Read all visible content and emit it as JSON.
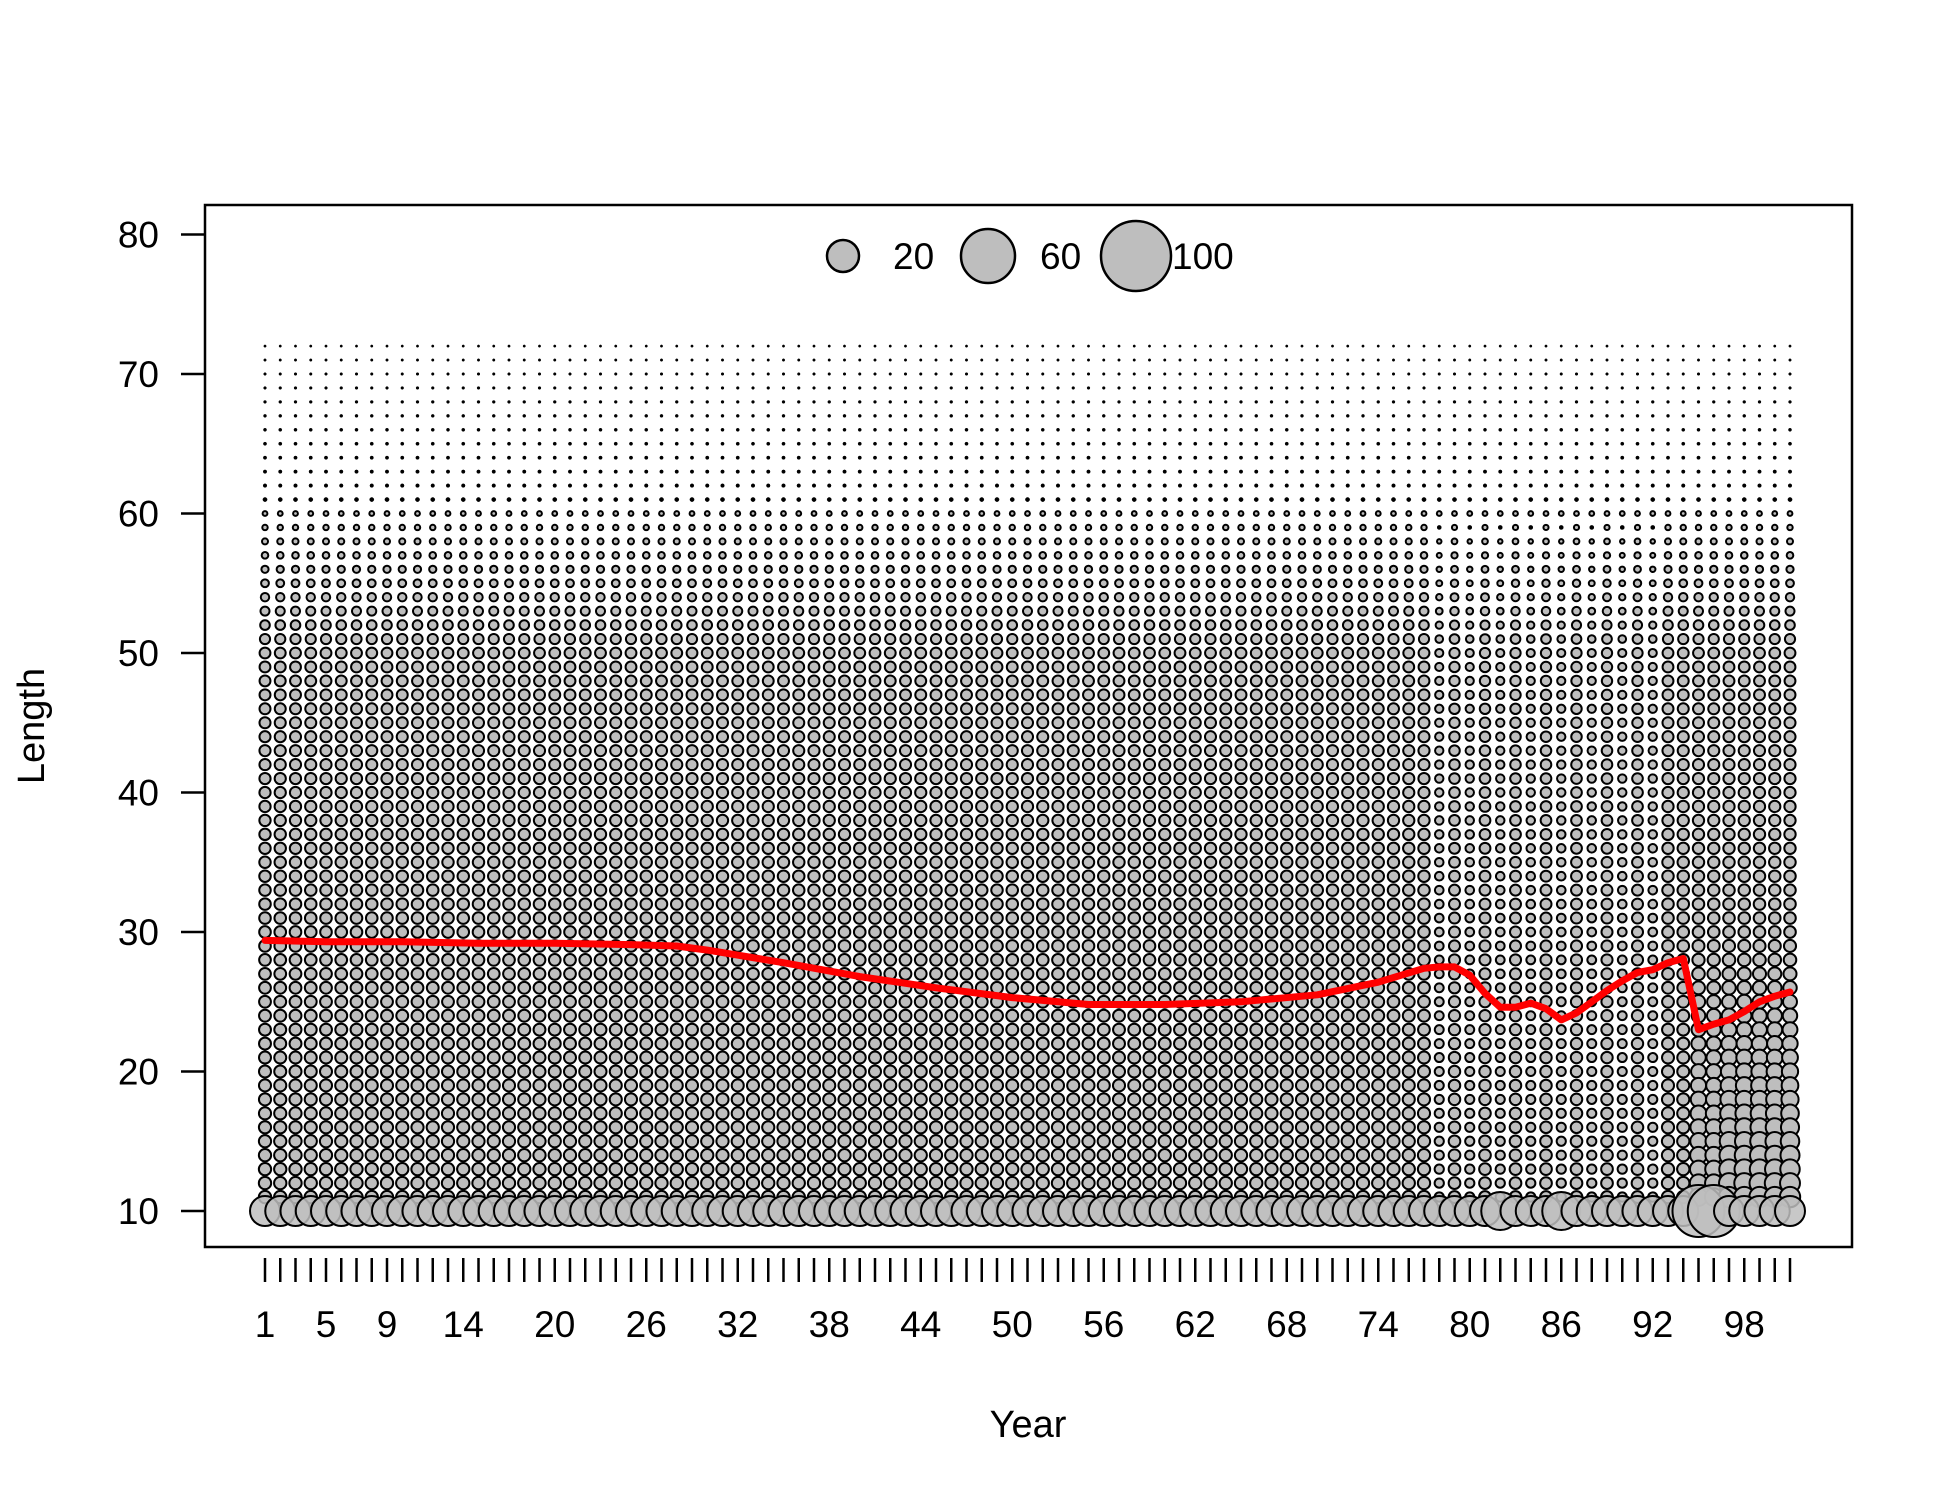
{
  "chart_data": {
    "type": "scatter",
    "subtype": "bubble",
    "title": "",
    "xlabel": "Year",
    "ylabel": "Length",
    "xlim": [
      1,
      101
    ],
    "ylim": [
      7.5,
      82
    ],
    "x_tick_labels": [
      "1",
      "5",
      "9",
      "14",
      "20",
      "26",
      "32",
      "38",
      "44",
      "50",
      "56",
      "62",
      "68",
      "74",
      "80",
      "86",
      "92",
      "98"
    ],
    "x_tick_positions": [
      1,
      5,
      9,
      14,
      20,
      26,
      32,
      38,
      44,
      50,
      56,
      62,
      68,
      74,
      80,
      86,
      92,
      98
    ],
    "x_minor_ticks": {
      "from": 1,
      "to": 101,
      "step": 1
    },
    "y_ticks": [
      10,
      20,
      30,
      40,
      50,
      60,
      70,
      80
    ],
    "bubble_grid": {
      "years": {
        "from": 1,
        "to": 101,
        "step": 1
      },
      "lengths": {
        "from": 10,
        "to": 72,
        "step": 1
      },
      "size_variable": "count",
      "fill_color": "#bebebe",
      "stroke_color": "#000000",
      "description_of_pattern": "largest bubbles at length 10; bubble size shrinks with length, becoming dots above ~60"
    },
    "legend": {
      "placement": "top-center",
      "entries": [
        {
          "label": "20",
          "value": 20
        },
        {
          "label": "60",
          "value": 60
        },
        {
          "label": "100",
          "value": 100
        }
      ]
    },
    "series": [
      {
        "type": "line",
        "color": "#ff0000",
        "x": [
          1,
          5,
          10,
          15,
          20,
          25,
          28,
          30,
          35,
          40,
          45,
          50,
          55,
          60,
          65,
          70,
          74,
          77,
          78,
          79,
          80,
          81,
          82,
          83,
          84,
          85,
          86,
          87,
          88,
          89,
          90,
          91,
          92,
          93,
          94,
          95,
          96,
          97,
          98,
          99,
          100,
          101
        ],
        "y": [
          29.4,
          29.3,
          29.3,
          29.2,
          29.2,
          29.1,
          29.0,
          28.7,
          27.8,
          26.8,
          26.0,
          25.3,
          24.8,
          24.8,
          25.0,
          25.5,
          26.4,
          27.4,
          27.5,
          27.5,
          26.9,
          25.6,
          24.6,
          24.6,
          24.9,
          24.5,
          23.7,
          24.2,
          25.0,
          25.8,
          26.5,
          27.1,
          27.3,
          27.8,
          28.1,
          23.0,
          23.4,
          23.7,
          24.3,
          25.0,
          25.4,
          25.7
        ]
      }
    ],
    "grid": false
  }
}
